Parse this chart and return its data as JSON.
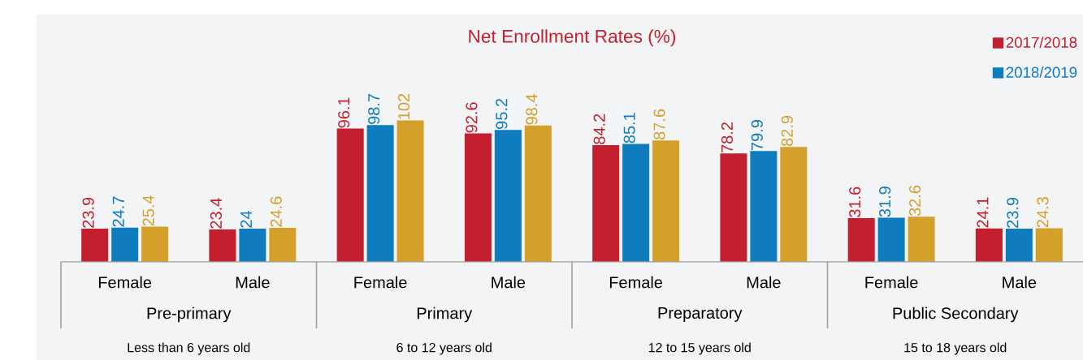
{
  "chart_data": {
    "type": "bar",
    "title": "Net Enrollment Rates (%)",
    "categories": [
      "Female",
      "Male",
      "Female",
      "Male",
      "Female",
      "Male",
      "Female",
      "Male"
    ],
    "series": [
      {
        "name": "2017/2018",
        "color": "#c41f2e",
        "values": [
          23.9,
          23.4,
          96.1,
          92.6,
          84.2,
          78.2,
          31.6,
          24.1
        ]
      },
      {
        "name": "2018/2019",
        "color": "#0f7cbf",
        "values": [
          24.7,
          24,
          98.7,
          95.2,
          85.1,
          79.9,
          31.9,
          23.9
        ]
      },
      {
        "color": "#d4a02a",
        "values": [
          25.4,
          24.6,
          102,
          98.4,
          87.6,
          82.9,
          32.6,
          24.3
        ]
      }
    ],
    "annotations": [
      "Pre-primary",
      "Primary",
      "Preparatory",
      "Public Secondary",
      "Less than 6 years old",
      "6 to 12 years old",
      "12 to 15 years old",
      "15 to 18 years old"
    ],
    "data_labels": true,
    "legend": "top right"
  }
}
